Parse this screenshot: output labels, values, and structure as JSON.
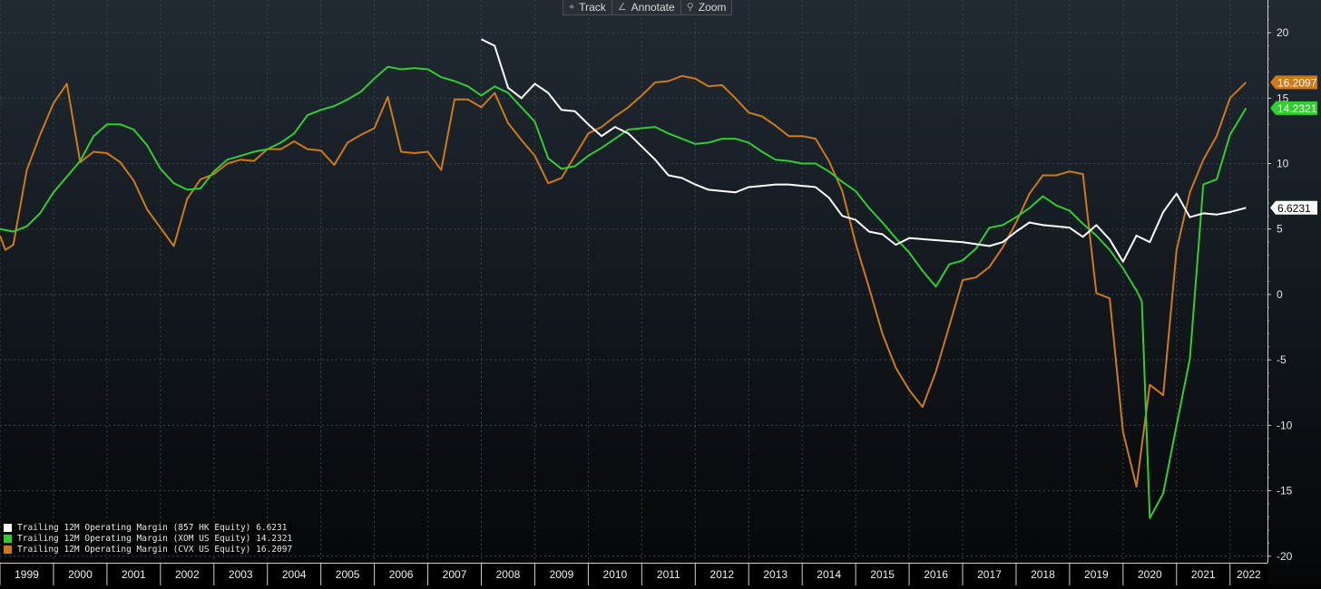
{
  "toolbar": {
    "items": [
      {
        "label": "Track",
        "icon": "crosshair-icon",
        "glyph": "⌖"
      },
      {
        "label": "Annotate",
        "icon": "pencil-icon",
        "glyph": "∠"
      },
      {
        "label": "Zoom",
        "icon": "magnifier-icon",
        "glyph": "⚲"
      }
    ]
  },
  "chart_data": {
    "type": "line",
    "title": "",
    "xlabel": "",
    "ylabel": "",
    "xlim": [
      1999.0,
      2022.7
    ],
    "ylim": [
      -20.5,
      22.5
    ],
    "x_tick_labels": [
      "1999",
      "2000",
      "2001",
      "2002",
      "2003",
      "2004",
      "2005",
      "2006",
      "2007",
      "2008",
      "2009",
      "2010",
      "2011",
      "2012",
      "2013",
      "2014",
      "2015",
      "2016",
      "2017",
      "2018",
      "2019",
      "2020",
      "2021",
      "2022"
    ],
    "y_ticks": [
      20,
      15,
      10,
      5,
      0,
      -5,
      -10,
      -15,
      -20
    ],
    "grid": true,
    "legend_position": "bottom-left",
    "series": [
      {
        "name": "Trailing 12M Operating Margin (857 HK Equity)",
        "last_value_label": "6.6231",
        "color": "#ffffff",
        "points": [
          [
            2008.0,
            19.5
          ],
          [
            2008.25,
            19.0
          ],
          [
            2008.5,
            15.8
          ],
          [
            2008.75,
            15.0
          ],
          [
            2009.0,
            16.1
          ],
          [
            2009.25,
            15.4
          ],
          [
            2009.5,
            14.1
          ],
          [
            2009.75,
            14.0
          ],
          [
            2010.0,
            13.0
          ],
          [
            2010.25,
            12.1
          ],
          [
            2010.5,
            12.8
          ],
          [
            2010.75,
            12.3
          ],
          [
            2011.0,
            11.3
          ],
          [
            2011.25,
            10.3
          ],
          [
            2011.5,
            9.1
          ],
          [
            2011.75,
            8.9
          ],
          [
            2012.0,
            8.4
          ],
          [
            2012.25,
            8.0
          ],
          [
            2012.5,
            7.9
          ],
          [
            2012.75,
            7.8
          ],
          [
            2013.0,
            8.2
          ],
          [
            2013.25,
            8.3
          ],
          [
            2013.5,
            8.4
          ],
          [
            2013.75,
            8.4
          ],
          [
            2014.0,
            8.3
          ],
          [
            2014.25,
            8.2
          ],
          [
            2014.5,
            7.4
          ],
          [
            2014.75,
            6.0
          ],
          [
            2015.0,
            5.7
          ],
          [
            2015.25,
            4.8
          ],
          [
            2015.5,
            4.6
          ],
          [
            2015.75,
            3.8
          ],
          [
            2016.0,
            4.3
          ],
          [
            2017.0,
            4.0
          ],
          [
            2017.5,
            3.7
          ],
          [
            2017.75,
            4.0
          ],
          [
            2018.0,
            4.8
          ],
          [
            2018.25,
            5.5
          ],
          [
            2018.5,
            5.3
          ],
          [
            2018.75,
            5.2
          ],
          [
            2019.0,
            5.1
          ],
          [
            2019.25,
            4.4
          ],
          [
            2019.5,
            5.3
          ],
          [
            2019.75,
            4.2
          ],
          [
            2020.0,
            2.5
          ],
          [
            2020.25,
            4.5
          ],
          [
            2020.5,
            4.0
          ],
          [
            2020.75,
            6.3
          ],
          [
            2021.0,
            7.7
          ],
          [
            2021.25,
            5.9
          ],
          [
            2021.5,
            6.2
          ],
          [
            2021.75,
            6.1
          ],
          [
            2022.0,
            6.3
          ],
          [
            2022.3,
            6.6231
          ]
        ]
      },
      {
        "name": "Trailing 12M Operating Margin (XOM US Equity)",
        "last_value_label": "14.2321",
        "color": "#33cc33",
        "points": [
          [
            1999.0,
            5.0
          ],
          [
            1999.25,
            4.8
          ],
          [
            1999.5,
            5.2
          ],
          [
            1999.75,
            6.2
          ],
          [
            2000.0,
            7.8
          ],
          [
            2000.25,
            9.0
          ],
          [
            2000.5,
            10.2
          ],
          [
            2000.75,
            12.1
          ],
          [
            2001.0,
            13.0
          ],
          [
            2001.25,
            13.0
          ],
          [
            2001.5,
            12.6
          ],
          [
            2001.75,
            11.4
          ],
          [
            2002.0,
            9.6
          ],
          [
            2002.25,
            8.5
          ],
          [
            2002.5,
            8.0
          ],
          [
            2002.75,
            8.1
          ],
          [
            2003.0,
            9.4
          ],
          [
            2003.25,
            10.3
          ],
          [
            2003.5,
            10.6
          ],
          [
            2003.75,
            10.9
          ],
          [
            2004.0,
            11.1
          ],
          [
            2004.25,
            11.6
          ],
          [
            2004.5,
            12.3
          ],
          [
            2004.75,
            13.7
          ],
          [
            2005.0,
            14.1
          ],
          [
            2005.25,
            14.4
          ],
          [
            2005.5,
            14.9
          ],
          [
            2005.75,
            15.5
          ],
          [
            2006.0,
            16.5
          ],
          [
            2006.25,
            17.4
          ],
          [
            2006.5,
            17.2
          ],
          [
            2006.75,
            17.3
          ],
          [
            2007.0,
            17.2
          ],
          [
            2007.25,
            16.6
          ],
          [
            2007.5,
            16.3
          ],
          [
            2007.75,
            15.9
          ],
          [
            2008.0,
            15.2
          ],
          [
            2008.25,
            15.9
          ],
          [
            2008.5,
            15.4
          ],
          [
            2008.75,
            14.3
          ],
          [
            2009.0,
            13.2
          ],
          [
            2009.25,
            10.4
          ],
          [
            2009.5,
            9.6
          ],
          [
            2009.75,
            9.8
          ],
          [
            2010.0,
            10.6
          ],
          [
            2010.25,
            11.2
          ],
          [
            2010.5,
            11.9
          ],
          [
            2010.75,
            12.6
          ],
          [
            2011.0,
            12.7
          ],
          [
            2011.25,
            12.8
          ],
          [
            2011.5,
            12.3
          ],
          [
            2011.75,
            11.9
          ],
          [
            2012.0,
            11.5
          ],
          [
            2012.25,
            11.6
          ],
          [
            2012.5,
            11.9
          ],
          [
            2012.75,
            11.9
          ],
          [
            2013.0,
            11.6
          ],
          [
            2013.25,
            10.9
          ],
          [
            2013.5,
            10.3
          ],
          [
            2013.75,
            10.2
          ],
          [
            2014.0,
            10.0
          ],
          [
            2014.25,
            10.0
          ],
          [
            2014.5,
            9.4
          ],
          [
            2014.75,
            8.6
          ],
          [
            2015.0,
            7.9
          ],
          [
            2015.25,
            6.6
          ],
          [
            2015.5,
            5.5
          ],
          [
            2015.75,
            4.3
          ],
          [
            2016.0,
            3.2
          ],
          [
            2016.25,
            1.8
          ],
          [
            2016.5,
            0.6
          ],
          [
            2016.75,
            2.3
          ],
          [
            2017.0,
            2.6
          ],
          [
            2017.25,
            3.5
          ],
          [
            2017.5,
            5.1
          ],
          [
            2017.75,
            5.3
          ],
          [
            2018.0,
            5.9
          ],
          [
            2018.25,
            6.6
          ],
          [
            2018.5,
            7.5
          ],
          [
            2018.75,
            6.8
          ],
          [
            2019.0,
            6.4
          ],
          [
            2019.25,
            5.4
          ],
          [
            2019.5,
            4.5
          ],
          [
            2019.75,
            3.4
          ],
          [
            2020.0,
            2.0
          ],
          [
            2020.25,
            0.3
          ],
          [
            2020.35,
            -0.5
          ],
          [
            2020.5,
            -17.1
          ],
          [
            2020.75,
            -15.2
          ],
          [
            2021.0,
            -10.0
          ],
          [
            2021.25,
            -4.9
          ],
          [
            2021.5,
            8.4
          ],
          [
            2021.75,
            8.8
          ],
          [
            2022.0,
            12.2
          ],
          [
            2022.3,
            14.2321
          ]
        ]
      },
      {
        "name": "Trailing 12M Operating Margin (CVX US Equity)",
        "last_value_label": "16.2097",
        "color": "#cc7a1a",
        "points": [
          [
            1999.0,
            4.5
          ],
          [
            1999.1,
            3.4
          ],
          [
            1999.25,
            3.8
          ],
          [
            1999.5,
            9.5
          ],
          [
            1999.75,
            12.2
          ],
          [
            2000.0,
            14.6
          ],
          [
            2000.25,
            16.1
          ],
          [
            2000.5,
            10.1
          ],
          [
            2000.75,
            10.9
          ],
          [
            2001.0,
            10.8
          ],
          [
            2001.25,
            10.1
          ],
          [
            2001.5,
            8.7
          ],
          [
            2001.75,
            6.5
          ],
          [
            2002.0,
            5.1
          ],
          [
            2002.25,
            3.7
          ],
          [
            2002.5,
            7.3
          ],
          [
            2002.75,
            8.8
          ],
          [
            2003.0,
            9.2
          ],
          [
            2003.25,
            10.0
          ],
          [
            2003.5,
            10.3
          ],
          [
            2003.75,
            10.2
          ],
          [
            2004.0,
            11.1
          ],
          [
            2004.25,
            11.1
          ],
          [
            2004.5,
            11.7
          ],
          [
            2004.75,
            11.1
          ],
          [
            2005.0,
            11.0
          ],
          [
            2005.25,
            9.9
          ],
          [
            2005.5,
            11.6
          ],
          [
            2005.75,
            12.2
          ],
          [
            2006.0,
            12.7
          ],
          [
            2006.25,
            15.1
          ],
          [
            2006.5,
            10.9
          ],
          [
            2006.75,
            10.8
          ],
          [
            2007.0,
            10.9
          ],
          [
            2007.25,
            9.5
          ],
          [
            2007.5,
            14.9
          ],
          [
            2007.75,
            14.9
          ],
          [
            2008.0,
            14.3
          ],
          [
            2008.25,
            15.4
          ],
          [
            2008.5,
            13.1
          ],
          [
            2008.75,
            11.8
          ],
          [
            2009.0,
            10.6
          ],
          [
            2009.25,
            8.5
          ],
          [
            2009.5,
            8.9
          ],
          [
            2009.75,
            10.6
          ],
          [
            2010.0,
            12.3
          ],
          [
            2010.25,
            12.8
          ],
          [
            2010.5,
            13.6
          ],
          [
            2010.75,
            14.3
          ],
          [
            2011.0,
            15.2
          ],
          [
            2011.25,
            16.2
          ],
          [
            2011.5,
            16.3
          ],
          [
            2011.75,
            16.7
          ],
          [
            2012.0,
            16.5
          ],
          [
            2012.25,
            15.9
          ],
          [
            2012.5,
            16.0
          ],
          [
            2012.75,
            15.0
          ],
          [
            2013.0,
            13.9
          ],
          [
            2013.25,
            13.6
          ],
          [
            2013.5,
            12.9
          ],
          [
            2013.75,
            12.1
          ],
          [
            2014.0,
            12.1
          ],
          [
            2014.25,
            11.9
          ],
          [
            2014.5,
            10.2
          ],
          [
            2014.75,
            7.9
          ],
          [
            2015.0,
            3.9
          ],
          [
            2015.25,
            0.5
          ],
          [
            2015.5,
            -3.0
          ],
          [
            2015.75,
            -5.6
          ],
          [
            2016.0,
            -7.3
          ],
          [
            2016.25,
            -8.6
          ],
          [
            2016.5,
            -5.9
          ],
          [
            2016.75,
            -2.4
          ],
          [
            2017.0,
            1.1
          ],
          [
            2017.25,
            1.3
          ],
          [
            2017.5,
            2.1
          ],
          [
            2017.75,
            3.6
          ],
          [
            2018.0,
            5.5
          ],
          [
            2018.25,
            7.7
          ],
          [
            2018.5,
            9.1
          ],
          [
            2018.75,
            9.1
          ],
          [
            2019.0,
            9.4
          ],
          [
            2019.25,
            9.2
          ],
          [
            2019.5,
            0.1
          ],
          [
            2019.75,
            -0.3
          ],
          [
            2020.0,
            -10.5
          ],
          [
            2020.25,
            -14.7
          ],
          [
            2020.5,
            -6.9
          ],
          [
            2020.75,
            -7.7
          ],
          [
            2021.0,
            3.4
          ],
          [
            2021.25,
            7.8
          ],
          [
            2021.5,
            10.3
          ],
          [
            2021.75,
            12.1
          ],
          [
            2022.0,
            15.0
          ],
          [
            2022.3,
            16.2097
          ]
        ]
      }
    ]
  }
}
